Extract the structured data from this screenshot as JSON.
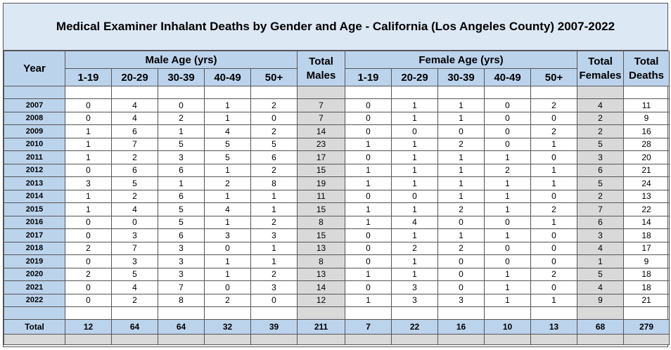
{
  "title": "Medical Examiner Inhalant Deaths by Gender and Age - California (Los Angeles County) 2007-2022",
  "headers": {
    "year": "Year",
    "male_group": "Male Age (yrs)",
    "female_group": "Female Age (yrs)",
    "total_males_1": "Total",
    "total_males_2": "Males",
    "total_females_1": "Total",
    "total_females_2": "Females",
    "total_deaths_1": "Total",
    "total_deaths_2": "Deaths",
    "age_bins": [
      "1-19",
      "20-29",
      "30-39",
      "40-49",
      "50+"
    ]
  },
  "rows": [
    {
      "year": "2007",
      "male": [
        "0",
        "4",
        "0",
        "1",
        "2"
      ],
      "total_males": "7",
      "female": [
        "0",
        "1",
        "1",
        "0",
        "2"
      ],
      "total_females": "4",
      "total_deaths": "11"
    },
    {
      "year": "2008",
      "male": [
        "0",
        "4",
        "2",
        "1",
        "0"
      ],
      "total_males": "7",
      "female": [
        "0",
        "1",
        "1",
        "0",
        "0"
      ],
      "total_females": "2",
      "total_deaths": "9"
    },
    {
      "year": "2009",
      "male": [
        "1",
        "6",
        "1",
        "4",
        "2"
      ],
      "total_males": "14",
      "female": [
        "0",
        "0",
        "0",
        "0",
        "2"
      ],
      "total_females": "2",
      "total_deaths": "16"
    },
    {
      "year": "2010",
      "male": [
        "1",
        "7",
        "5",
        "5",
        "5"
      ],
      "total_males": "23",
      "female": [
        "1",
        "1",
        "2",
        "0",
        "1"
      ],
      "total_females": "5",
      "total_deaths": "28"
    },
    {
      "year": "2011",
      "male": [
        "1",
        "2",
        "3",
        "5",
        "6"
      ],
      "total_males": "17",
      "female": [
        "0",
        "1",
        "1",
        "1",
        "0"
      ],
      "total_females": "3",
      "total_deaths": "20"
    },
    {
      "year": "2012",
      "male": [
        "0",
        "6",
        "6",
        "1",
        "2"
      ],
      "total_males": "15",
      "female": [
        "1",
        "1",
        "1",
        "2",
        "1"
      ],
      "total_females": "6",
      "total_deaths": "21"
    },
    {
      "year": "2013",
      "male": [
        "3",
        "5",
        "1",
        "2",
        "8"
      ],
      "total_males": "19",
      "female": [
        "1",
        "1",
        "1",
        "1",
        "1"
      ],
      "total_females": "5",
      "total_deaths": "24"
    },
    {
      "year": "2014",
      "male": [
        "1",
        "2",
        "6",
        "1",
        "1"
      ],
      "total_males": "11",
      "female": [
        "0",
        "0",
        "1",
        "1",
        "0"
      ],
      "total_females": "2",
      "total_deaths": "13"
    },
    {
      "year": "2015",
      "male": [
        "1",
        "4",
        "5",
        "4",
        "1"
      ],
      "total_males": "15",
      "female": [
        "1",
        "1",
        "2",
        "1",
        "2"
      ],
      "total_females": "7",
      "total_deaths": "22"
    },
    {
      "year": "2016",
      "male": [
        "0",
        "0",
        "5",
        "1",
        "2"
      ],
      "total_males": "8",
      "female": [
        "1",
        "4",
        "0",
        "0",
        "1"
      ],
      "total_females": "6",
      "total_deaths": "14"
    },
    {
      "year": "2017",
      "male": [
        "0",
        "3",
        "6",
        "3",
        "3"
      ],
      "total_males": "15",
      "female": [
        "0",
        "1",
        "1",
        "1",
        "0"
      ],
      "total_females": "3",
      "total_deaths": "18"
    },
    {
      "year": "2018",
      "male": [
        "2",
        "7",
        "3",
        "0",
        "1"
      ],
      "total_males": "13",
      "female": [
        "0",
        "2",
        "2",
        "0",
        "0"
      ],
      "total_females": "4",
      "total_deaths": "17"
    },
    {
      "year": "2019",
      "male": [
        "0",
        "3",
        "3",
        "1",
        "1"
      ],
      "total_males": "8",
      "female": [
        "0",
        "1",
        "0",
        "0",
        "0"
      ],
      "total_females": "1",
      "total_deaths": "9"
    },
    {
      "year": "2020",
      "male": [
        "2",
        "5",
        "3",
        "1",
        "2"
      ],
      "total_males": "13",
      "female": [
        "1",
        "1",
        "0",
        "1",
        "2"
      ],
      "total_females": "5",
      "total_deaths": "18"
    },
    {
      "year": "2021",
      "male": [
        "0",
        "4",
        "7",
        "0",
        "3"
      ],
      "total_males": "14",
      "female": [
        "0",
        "3",
        "0",
        "1",
        "0"
      ],
      "total_females": "4",
      "total_deaths": "18"
    },
    {
      "year": "2022",
      "male": [
        "0",
        "2",
        "8",
        "2",
        "0"
      ],
      "total_males": "12",
      "female": [
        "1",
        "3",
        "3",
        "1",
        "1"
      ],
      "total_females": "9",
      "total_deaths": "21"
    }
  ],
  "totals": {
    "label": "Total",
    "male": [
      "12",
      "64",
      "64",
      "32",
      "39"
    ],
    "total_males": "211",
    "female": [
      "7",
      "22",
      "16",
      "10",
      "13"
    ],
    "total_females": "68",
    "total_deaths": "279"
  },
  "colors": {
    "header_blue": "#bcd3ec",
    "title_blue": "#dde8f5",
    "grey": "#d9d9d9"
  }
}
